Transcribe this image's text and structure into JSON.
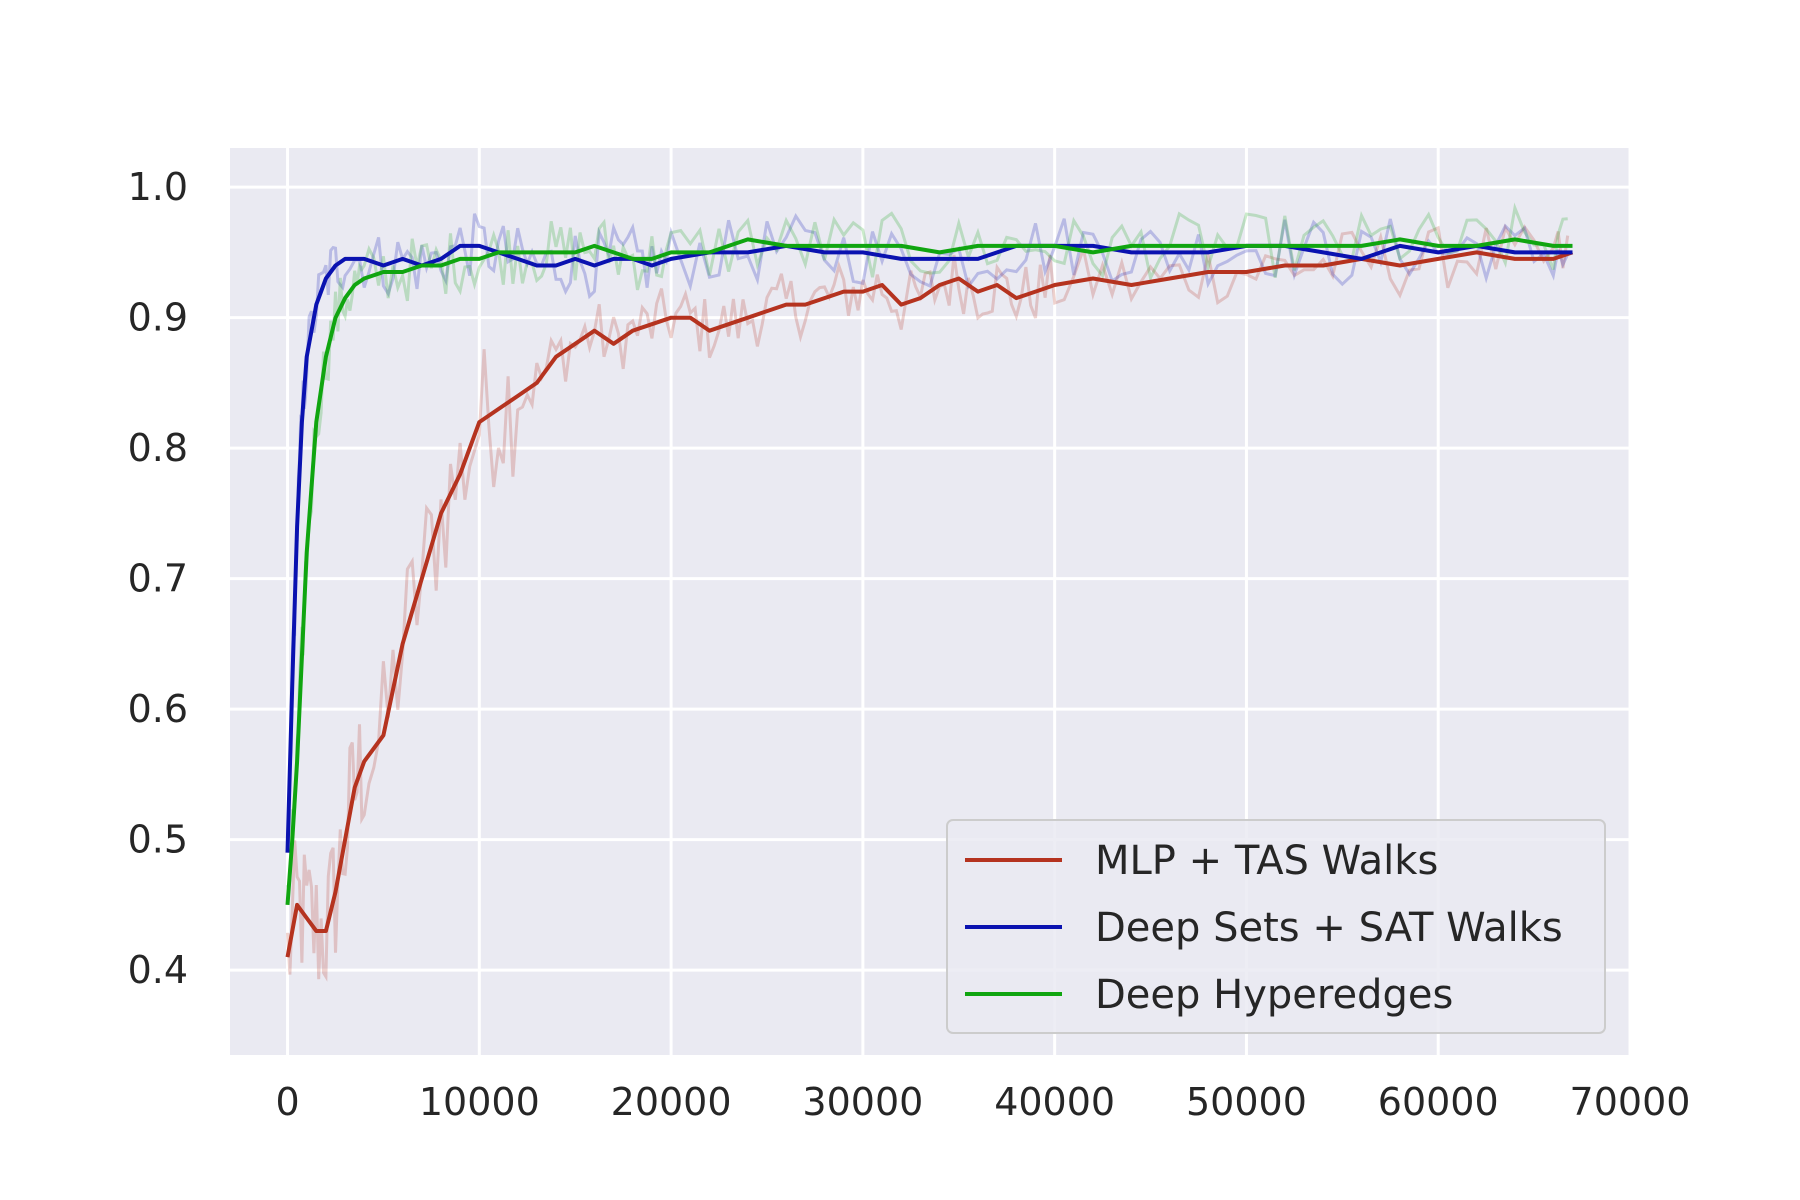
{
  "chart_data": {
    "type": "line",
    "title": "",
    "xlabel": "",
    "ylabel": "",
    "xlim": [
      -3000,
      70000
    ],
    "ylim": [
      0.335,
      1.03
    ],
    "x_ticks": [
      0,
      10000,
      20000,
      30000,
      40000,
      50000,
      60000,
      70000
    ],
    "x_tick_labels": [
      "0",
      "10000",
      "20000",
      "30000",
      "40000",
      "50000",
      "60000",
      "70000"
    ],
    "y_ticks": [
      0.4,
      0.5,
      0.6,
      0.7,
      0.8,
      0.9,
      1.0
    ],
    "y_tick_labels": [
      "0.4",
      "0.5",
      "0.6",
      "0.7",
      "0.8",
      "0.9",
      "1.0"
    ],
    "grid": true,
    "legend_position": "bottom-right",
    "background_color": "#eaeaf2",
    "series": [
      {
        "name": "MLP + TAS Walks",
        "color": "#b5331f",
        "x": [
          0,
          500,
          1000,
          1500,
          2000,
          2500,
          3000,
          3500,
          4000,
          5000,
          6000,
          7000,
          8000,
          9000,
          10000,
          11000,
          12000,
          13000,
          14000,
          15000,
          16000,
          17000,
          18000,
          19000,
          20000,
          21000,
          22000,
          23000,
          24000,
          25000,
          26000,
          27000,
          28000,
          29000,
          30000,
          31000,
          32000,
          33000,
          34000,
          35000,
          36000,
          37000,
          38000,
          39000,
          40000,
          42000,
          44000,
          46000,
          48000,
          50000,
          52000,
          54000,
          56000,
          58000,
          60000,
          62000,
          64000,
          66000,
          67000
        ],
        "y": [
          0.41,
          0.45,
          0.44,
          0.43,
          0.43,
          0.46,
          0.5,
          0.54,
          0.56,
          0.58,
          0.65,
          0.7,
          0.75,
          0.78,
          0.82,
          0.83,
          0.84,
          0.85,
          0.87,
          0.88,
          0.89,
          0.88,
          0.89,
          0.895,
          0.9,
          0.9,
          0.89,
          0.895,
          0.9,
          0.905,
          0.91,
          0.91,
          0.915,
          0.92,
          0.92,
          0.925,
          0.91,
          0.915,
          0.925,
          0.93,
          0.92,
          0.925,
          0.915,
          0.92,
          0.925,
          0.93,
          0.925,
          0.93,
          0.935,
          0.935,
          0.94,
          0.94,
          0.945,
          0.94,
          0.945,
          0.95,
          0.945,
          0.945,
          0.95
        ]
      },
      {
        "name": "Deep Sets + SAT Walks",
        "color": "#0a12b0",
        "x": [
          0,
          250,
          500,
          750,
          1000,
          1500,
          2000,
          2500,
          3000,
          4000,
          5000,
          6000,
          7000,
          8000,
          9000,
          10000,
          11000,
          12000,
          13000,
          14000,
          15000,
          16000,
          17000,
          18000,
          19000,
          20000,
          22000,
          24000,
          26000,
          28000,
          30000,
          32000,
          34000,
          36000,
          38000,
          40000,
          42000,
          44000,
          46000,
          48000,
          50000,
          52000,
          54000,
          56000,
          58000,
          60000,
          62000,
          64000,
          66000,
          67000
        ],
        "y": [
          0.49,
          0.62,
          0.74,
          0.82,
          0.87,
          0.91,
          0.93,
          0.94,
          0.945,
          0.945,
          0.94,
          0.945,
          0.94,
          0.945,
          0.955,
          0.955,
          0.95,
          0.945,
          0.94,
          0.94,
          0.945,
          0.94,
          0.945,
          0.945,
          0.94,
          0.945,
          0.95,
          0.95,
          0.955,
          0.95,
          0.95,
          0.945,
          0.945,
          0.945,
          0.955,
          0.955,
          0.955,
          0.95,
          0.95,
          0.95,
          0.955,
          0.955,
          0.95,
          0.945,
          0.955,
          0.95,
          0.955,
          0.95,
          0.95,
          0.95
        ]
      },
      {
        "name": "Deep Hyperedges",
        "color": "#10a510",
        "x": [
          0,
          250,
          500,
          750,
          1000,
          1500,
          2000,
          2500,
          3000,
          3500,
          4000,
          5000,
          6000,
          7000,
          8000,
          9000,
          10000,
          11000,
          12000,
          13000,
          14000,
          15000,
          16000,
          17000,
          18000,
          19000,
          20000,
          22000,
          24000,
          26000,
          28000,
          30000,
          32000,
          34000,
          36000,
          38000,
          40000,
          42000,
          44000,
          46000,
          48000,
          50000,
          52000,
          54000,
          56000,
          58000,
          60000,
          62000,
          64000,
          66000,
          67000
        ],
        "y": [
          0.45,
          0.5,
          0.56,
          0.64,
          0.72,
          0.82,
          0.87,
          0.9,
          0.915,
          0.925,
          0.93,
          0.935,
          0.935,
          0.94,
          0.94,
          0.945,
          0.945,
          0.95,
          0.95,
          0.95,
          0.95,
          0.95,
          0.955,
          0.95,
          0.945,
          0.945,
          0.95,
          0.95,
          0.96,
          0.955,
          0.955,
          0.955,
          0.955,
          0.95,
          0.955,
          0.955,
          0.955,
          0.95,
          0.955,
          0.955,
          0.955,
          0.955,
          0.955,
          0.955,
          0.955,
          0.96,
          0.955,
          0.955,
          0.96,
          0.955,
          0.955
        ]
      }
    ]
  }
}
